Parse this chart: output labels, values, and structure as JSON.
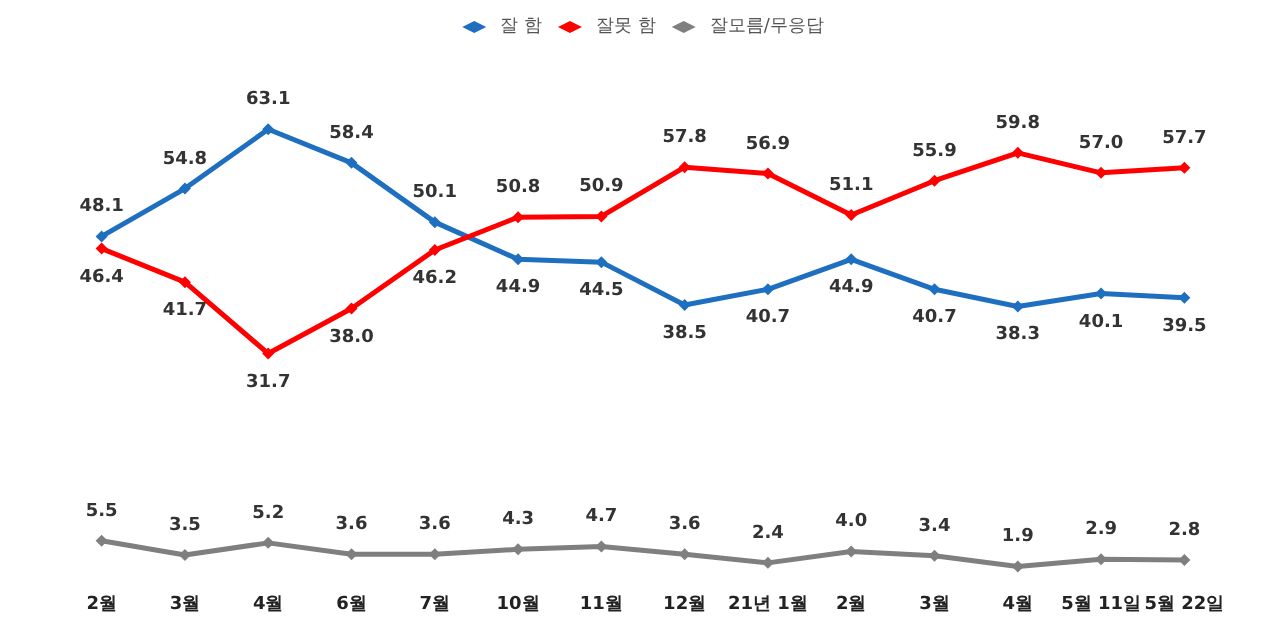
{
  "chart_data": {
    "type": "line",
    "categories": [
      "2월",
      "3월",
      "4월",
      "6월",
      "7월",
      "10월",
      "11월",
      "12월",
      "21년 1월",
      "2월",
      "3월",
      "4월",
      "5월 11일",
      "5월 22일"
    ],
    "series": [
      {
        "name": "잘 함",
        "color": "#1f6fc0",
        "values": [
          48.1,
          54.8,
          63.1,
          58.4,
          50.1,
          44.9,
          44.5,
          38.5,
          40.7,
          44.9,
          40.7,
          38.3,
          40.1,
          39.5
        ],
        "value_labels": [
          "48.1",
          "54.8",
          "63.1",
          "58.4",
          "50.1",
          "44.9",
          "44.5",
          "38.5",
          "40.7",
          "44.9",
          "40.7",
          "38.3",
          "40.1",
          "39.5"
        ]
      },
      {
        "name": "잘못 함",
        "color": "#ff0000",
        "values": [
          46.4,
          41.7,
          31.7,
          38.0,
          46.2,
          50.8,
          50.9,
          57.8,
          56.9,
          51.1,
          55.9,
          59.8,
          57.0,
          57.7
        ],
        "value_labels": [
          "46.4",
          "41.7",
          "31.7",
          "38.0",
          "46.2",
          "50.8",
          "50.9",
          "57.8",
          "56.9",
          "51.1",
          "55.9",
          "59.8",
          "57.0",
          "57.7"
        ]
      },
      {
        "name": "잘모름/무응답",
        "color": "#7f7f7f",
        "values": [
          5.5,
          3.5,
          5.2,
          3.6,
          3.6,
          4.3,
          4.7,
          3.6,
          2.4,
          4.0,
          3.4,
          1.9,
          2.9,
          2.8
        ],
        "value_labels": [
          "5.5",
          "3.5",
          "5.2",
          "3.6",
          "3.6",
          "4.3",
          "4.7",
          "3.6",
          "2.4",
          "4.0",
          "3.4",
          "1.9",
          "2.9",
          "2.8"
        ]
      }
    ],
    "legend": "top",
    "marker": "diamond",
    "tick_labels": "x"
  }
}
